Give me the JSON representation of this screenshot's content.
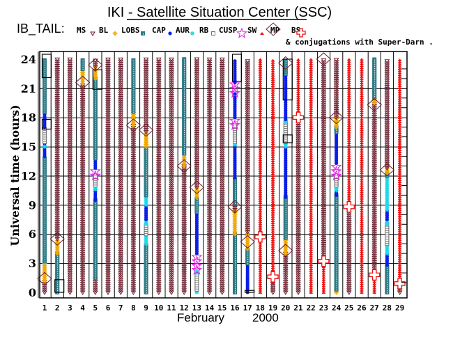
{
  "chart_data": {
    "type": "scatter",
    "title": "IKI - Satellite Situation Center (SSC)",
    "satellite_label": "IB_TAIL:",
    "subtitle": "& conjugations with Super-Darn .",
    "xlabel_month": "February",
    "xlabel_year": "2000",
    "ylabel": "Universal time (hours)",
    "xlim": [
      1,
      29
    ],
    "ylim": [
      0,
      24
    ],
    "x_ticks": [
      "1",
      "2",
      "3",
      "4",
      "5",
      "6",
      "7",
      "8",
      "9",
      "10",
      "11",
      "12",
      "13",
      "14",
      "15",
      "16",
      "17",
      "18",
      "19",
      "20",
      "21",
      "22",
      "23",
      "24",
      "25",
      "26",
      "27",
      "28",
      "29"
    ],
    "y_ticks": [
      0,
      3,
      6,
      9,
      12,
      15,
      18,
      21,
      24
    ],
    "grid": true,
    "legend": [
      {
        "key": "MS",
        "label": "MS",
        "symbol": "triangle-down",
        "color": "#6b1f2e"
      },
      {
        "key": "BL",
        "label": "BL",
        "symbol": "sun",
        "color": "#f0a800"
      },
      {
        "key": "LOBS",
        "label": "LOBS",
        "symbol": "square",
        "color": "#2e7a84"
      },
      {
        "key": "CAP",
        "label": "CAP",
        "symbol": "dot",
        "color": "#0a1ee6"
      },
      {
        "key": "AUR",
        "label": "AUR",
        "symbol": "asterisk",
        "color": "#20d8e8"
      },
      {
        "key": "RB",
        "label": "RB",
        "symbol": "open-square",
        "color": "#707070"
      },
      {
        "key": "CUSP",
        "label": "CUSP",
        "symbol": "star",
        "color": "#e020e0"
      },
      {
        "key": "SW",
        "label": "SW",
        "symbol": "sw",
        "color": "#ee1010"
      },
      {
        "key": "MP",
        "label": "MP",
        "symbol": "diamond",
        "color": "#6b1f2e"
      },
      {
        "key": "BS",
        "label": "BS",
        "symbol": "cross",
        "color": "#ee1010"
      }
    ],
    "series": [
      {
        "day": 1,
        "segments": [
          [
            "MS",
            0,
            1.2
          ],
          [
            "BL",
            1.2,
            3.2
          ],
          [
            "LOBS",
            3.2,
            13.8
          ],
          [
            "CAP",
            14,
            15.5
          ],
          [
            "AUR",
            15,
            15.2
          ],
          [
            "RB",
            15.5,
            17
          ],
          [
            "CAP",
            17,
            18.6
          ],
          [
            "LOBS",
            18.6,
            24
          ]
        ],
        "mp": [
          1.4
        ],
        "bs": [],
        "boxes": [
          [
            16.8,
            17.8
          ],
          [
            22.1,
            24.5
          ]
        ]
      },
      {
        "day": 2,
        "segments": [
          [
            "LOBS",
            0,
            4
          ],
          [
            "BL",
            4,
            5.5
          ],
          [
            "MS",
            5.5,
            24
          ]
        ],
        "mp": [
          5.5
        ],
        "bs": [],
        "boxes": [
          [
            0,
            1.3
          ]
        ]
      },
      {
        "day": 3,
        "segments": [
          [
            "MS",
            0,
            24
          ]
        ],
        "mp": [],
        "bs": [],
        "boxes": []
      },
      {
        "day": 4,
        "segments": [
          [
            "MS",
            0,
            21.5
          ],
          [
            "BL",
            21.5,
            23
          ],
          [
            "LOBS",
            23,
            24
          ]
        ],
        "mp": [
          21.6
        ],
        "bs": [],
        "boxes": []
      },
      {
        "day": 5,
        "segments": [
          [
            "MS",
            0,
            1.5
          ],
          [
            "LOBS",
            1.5,
            9.5
          ],
          [
            "CAP",
            9.5,
            10.6
          ],
          [
            "AUR",
            10.6,
            11
          ],
          [
            "RB",
            11,
            12
          ],
          [
            "CUSP",
            12,
            12.8
          ],
          [
            "CAP",
            12.8,
            13.8
          ],
          [
            "LOBS",
            13.8,
            22
          ],
          [
            "BL",
            22,
            23.2
          ],
          [
            "MS",
            23.2,
            24
          ]
        ],
        "mp": [
          23.4
        ],
        "bs": [],
        "boxes": [
          [
            20.9,
            22.9
          ]
        ]
      },
      {
        "day": 6,
        "segments": [
          [
            "MS",
            0,
            24
          ]
        ],
        "mp": [],
        "bs": [],
        "boxes": []
      },
      {
        "day": 7,
        "segments": [
          [
            "MS",
            0,
            24
          ]
        ],
        "mp": [],
        "bs": [],
        "boxes": []
      },
      {
        "day": 8,
        "segments": [
          [
            "MS",
            0,
            17.2
          ],
          [
            "BL",
            17.2,
            18.6
          ],
          [
            "LOBS",
            18.6,
            24
          ]
        ],
        "mp": [
          17.2
        ],
        "bs": [],
        "boxes": []
      },
      {
        "day": 9,
        "segments": [
          [
            "LOBS",
            0,
            5
          ],
          [
            "AUR",
            5,
            6
          ],
          [
            "RB",
            6,
            7
          ],
          [
            "AUR",
            7,
            7.5
          ],
          [
            "CAP",
            7.5,
            9
          ],
          [
            "AUR",
            9,
            10
          ],
          [
            "LOBS",
            10,
            15
          ],
          [
            "BL",
            15,
            16.5
          ],
          [
            "MS",
            16.5,
            24
          ]
        ],
        "mp": [
          16.7
        ],
        "bs": [],
        "boxes": []
      },
      {
        "day": 10,
        "segments": [
          [
            "MS",
            0,
            24
          ]
        ],
        "mp": [],
        "bs": [],
        "boxes": []
      },
      {
        "day": 11,
        "segments": [
          [
            "MS",
            0,
            24
          ]
        ],
        "mp": [],
        "bs": [],
        "boxes": []
      },
      {
        "day": 12,
        "segments": [
          [
            "MS",
            0,
            13
          ],
          [
            "BL",
            13,
            14.3
          ],
          [
            "LOBS",
            14.3,
            24
          ]
        ],
        "mp": [
          13
        ],
        "bs": [],
        "boxes": []
      },
      {
        "day": 13,
        "segments": [
          [
            "AUR",
            0,
            0.3
          ],
          [
            "RB",
            0.3,
            2
          ],
          [
            "AUR",
            2,
            2.3
          ],
          [
            "CUSP",
            2.3,
            4
          ],
          [
            "CAP",
            4,
            8.3
          ],
          [
            "LOBS",
            8.3,
            9.8
          ],
          [
            "BL",
            9.8,
            10.8
          ],
          [
            "MS",
            10.8,
            24
          ]
        ],
        "mp": [
          10.8
        ],
        "bs": [],
        "boxes": []
      },
      {
        "day": 14,
        "segments": [
          [
            "MS",
            0,
            24
          ]
        ],
        "mp": [],
        "bs": [],
        "boxes": []
      },
      {
        "day": 15,
        "segments": [
          [
            "MS",
            0,
            24
          ]
        ],
        "mp": [],
        "bs": [],
        "boxes": []
      },
      {
        "day": 16,
        "segments": [
          [
            "LOBS",
            0,
            6
          ],
          [
            "BL",
            6,
            8.5
          ],
          [
            "MS",
            8.5,
            9.2
          ],
          [
            "LOBS",
            9.2,
            11.8
          ],
          [
            "CAP",
            11.8,
            15.2
          ],
          [
            "AUR",
            15.2,
            15.5
          ],
          [
            "RB",
            15.5,
            17.2
          ],
          [
            "CUSP",
            17.2,
            18
          ],
          [
            "CAP",
            18,
            20.5
          ],
          [
            "CUSP",
            20.5,
            21.6
          ],
          [
            "CAP",
            21.6,
            24
          ]
        ],
        "mp": [
          8.8
        ],
        "bs": [],
        "boxes": [
          [
            21.7,
            24.5
          ]
        ]
      },
      {
        "day": 17,
        "segments": [
          [
            "CAP",
            0,
            3
          ],
          [
            "LOBS",
            3,
            4.5
          ],
          [
            "BL",
            4.5,
            6.2
          ],
          [
            "MS",
            6.2,
            24
          ]
        ],
        "mp": [
          5.2
        ],
        "bs": [],
        "boxes": [
          [
            0,
            0.2
          ]
        ]
      },
      {
        "day": 18,
        "segments": [
          [
            "SW",
            0,
            24
          ]
        ],
        "mp": [],
        "bs": [
          5.7
        ],
        "boxes": []
      },
      {
        "day": 19,
        "segments": [
          [
            "MS",
            0,
            1
          ],
          [
            "SW",
            1,
            24
          ]
        ],
        "mp": [],
        "bs": [
          1.6
        ],
        "boxes": []
      },
      {
        "day": 20,
        "segments": [
          [
            "MS",
            0,
            4
          ],
          [
            "BL",
            4,
            5.6
          ],
          [
            "LOBS",
            5.6,
            9.8
          ],
          [
            "CAP",
            9.8,
            15
          ],
          [
            "AUR",
            15,
            15.5
          ],
          [
            "RB",
            15.5,
            17.5
          ],
          [
            "AUR",
            17.5,
            17.8
          ],
          [
            "CAP",
            17.8,
            22.5
          ],
          [
            "LOBS",
            22.5,
            24
          ]
        ],
        "mp": [
          4.3,
          23.6
        ],
        "bs": [],
        "boxes": [
          [
            15.4,
            16.2
          ],
          [
            19.8,
            24
          ]
        ]
      },
      {
        "day": 21,
        "segments": [
          [
            "MS",
            0,
            17.8
          ],
          [
            "SW",
            17.8,
            24
          ]
        ],
        "mp": [],
        "bs": [
          18
        ],
        "boxes": []
      },
      {
        "day": 22,
        "segments": [
          [
            "SW",
            0,
            24
          ]
        ],
        "mp": [],
        "bs": [],
        "boxes": []
      },
      {
        "day": 23,
        "segments": [
          [
            "SW",
            0,
            3
          ],
          [
            "MS",
            3,
            24
          ]
        ],
        "mp": [
          24
        ],
        "bs": [
          3.2
        ],
        "boxes": []
      },
      {
        "day": 24,
        "segments": [
          [
            "BL",
            0,
            0.3
          ],
          [
            "LOBS",
            0.3,
            10
          ],
          [
            "CAP",
            10,
            10.5
          ],
          [
            "AUR",
            10.5,
            11
          ],
          [
            "RB",
            11,
            12
          ],
          [
            "CUSP",
            12,
            13.3
          ],
          [
            "CAP",
            13.3,
            16.5
          ],
          [
            "LOBS",
            16.5,
            17
          ],
          [
            "BL",
            17,
            18
          ],
          [
            "MS",
            18,
            24
          ]
        ],
        "mp": [
          18
        ],
        "bs": [],
        "boxes": []
      },
      {
        "day": 25,
        "segments": [
          [
            "MS",
            0,
            8.8
          ],
          [
            "SW",
            8.8,
            24
          ]
        ],
        "mp": [],
        "bs": [
          8.8
        ],
        "boxes": []
      },
      {
        "day": 26,
        "segments": [
          [
            "SW",
            0,
            24
          ]
        ],
        "mp": [],
        "bs": [],
        "boxes": []
      },
      {
        "day": 27,
        "segments": [
          [
            "SW",
            0,
            1.8
          ],
          [
            "MS",
            1.8,
            19.5
          ],
          [
            "BL",
            19.5,
            20
          ],
          [
            "LOBS",
            20,
            24
          ]
        ],
        "mp": [
          19.3
        ],
        "bs": [
          1.8
        ],
        "boxes": []
      },
      {
        "day": 28,
        "segments": [
          [
            "LOBS",
            0,
            2.8
          ],
          [
            "CAP",
            2.8,
            4
          ],
          [
            "AUR",
            4,
            5
          ],
          [
            "RB",
            5,
            7
          ],
          [
            "AUR",
            7,
            7.5
          ],
          [
            "CAP",
            7.5,
            8.5
          ],
          [
            "AUR",
            8.5,
            12
          ],
          [
            "LOBS",
            12,
            12.3
          ],
          [
            "BL",
            12.3,
            12.8
          ],
          [
            "MS",
            12.8,
            24
          ]
        ],
        "mp": [
          12.6
        ],
        "bs": [],
        "boxes": []
      },
      {
        "day": 29,
        "segments": [
          [
            "MS",
            0,
            0.6
          ],
          [
            "SW",
            0.6,
            24
          ]
        ],
        "mp": [],
        "bs": [
          0.9
        ],
        "boxes": []
      }
    ]
  }
}
